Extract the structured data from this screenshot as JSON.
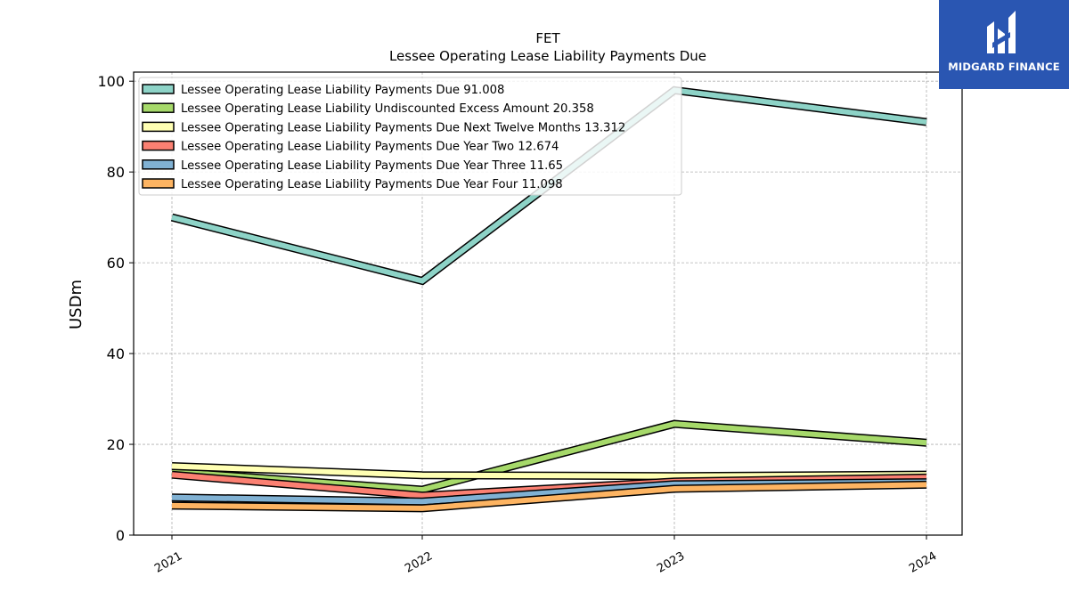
{
  "brand": {
    "name": "MIDGARD FINANCE",
    "color": "#2a56b2"
  },
  "chart_data": {
    "type": "line",
    "title": "FET",
    "subtitle": "Lessee Operating Lease Liability Payments Due",
    "xlabel": "",
    "ylabel": "USDm",
    "categories": [
      "2021",
      "2022",
      "2023",
      "2024"
    ],
    "ylim": [
      0,
      102
    ],
    "yticks": [
      0,
      20,
      40,
      60,
      80,
      100
    ],
    "grid": true,
    "legend_position": "top-left",
    "series": [
      {
        "name": "Lessee Operating Lease Liability Payments Due  91.008",
        "color": "#8dd3c7",
        "values": [
          70.0,
          56.0,
          98.0,
          91.008
        ]
      },
      {
        "name": "Lessee Operating Lease Liability Undiscounted Excess Amount  20.358",
        "color": "#a6d96a",
        "values": [
          14.0,
          10.0,
          24.5,
          20.358
        ]
      },
      {
        "name": "Lessee Operating Lease Liability Payments Due Next Twelve Months  13.312",
        "color": "#ffffb3",
        "values": [
          15.2,
          13.2,
          13.0,
          13.312
        ]
      },
      {
        "name": "Lessee Operating Lease Liability Payments Due Year Two  12.674",
        "color": "#fb8072",
        "values": [
          13.3,
          8.7,
          11.8,
          12.674
        ]
      },
      {
        "name": "Lessee Operating Lease Liability Payments Due Year Three  11.65",
        "color": "#80b1d3",
        "values": [
          8.3,
          7.4,
          11.2,
          11.65
        ]
      },
      {
        "name": "Lessee Operating Lease Liability Payments Due Year Four  11.098",
        "color": "#fdb462",
        "values": [
          6.5,
          5.9,
          10.2,
          11.098
        ]
      }
    ]
  }
}
